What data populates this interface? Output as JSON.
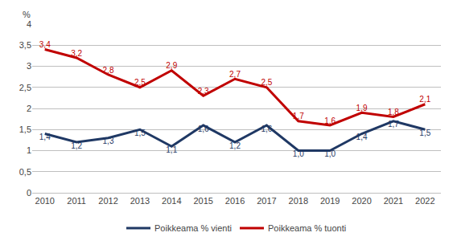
{
  "chart_data": {
    "type": "line",
    "y_label": "%",
    "x": [
      2010,
      2011,
      2012,
      2013,
      2014,
      2015,
      2016,
      2017,
      2018,
      2019,
      2020,
      2021,
      2022
    ],
    "series": [
      {
        "name": "Poikkeama % tuonti",
        "color": "#C00000",
        "values": [
          3.4,
          3.2,
          2.8,
          2.5,
          2.9,
          2.3,
          2.7,
          2.5,
          1.7,
          1.6,
          1.9,
          1.8,
          2.1
        ],
        "value_labels": [
          "3,4",
          "3,2",
          "2,8",
          "2,5",
          "2,9",
          "2,3",
          "2,7",
          "2,5",
          "1,7",
          "1,6",
          "1,9",
          "1,8",
          "2,1"
        ]
      },
      {
        "name": "Poikkeama % vienti",
        "color": "#1F3864",
        "values": [
          1.4,
          1.2,
          1.3,
          1.5,
          1.1,
          1.6,
          1.2,
          1.6,
          1.0,
          1.0,
          1.4,
          1.7,
          1.5
        ],
        "value_labels": [
          "1,4",
          "1,2",
          "1,3",
          "1,5",
          "1,1",
          "1,6",
          "1,2",
          "1,6",
          "1,0",
          "1,0",
          "1,4",
          "1,7",
          "1,5"
        ]
      }
    ],
    "xlim": [
      2009.6,
      2022.5
    ],
    "xticks": [
      2010,
      2011,
      2012,
      2013,
      2014,
      2015,
      2016,
      2017,
      2018,
      2019,
      2020,
      2021,
      2022
    ],
    "ylim": [
      0,
      4.0
    ],
    "yticks": [
      0,
      {
        "value": 0.5,
        "label": "0,5"
      },
      1,
      {
        "value": 1.5,
        "label": "1,5"
      },
      2,
      {
        "value": 2.5,
        "label": "2,5"
      },
      3,
      {
        "value": 3.5,
        "label": "3,5"
      },
      4
    ],
    "grid": "y",
    "legend": "bottom",
    "data_labels": true
  }
}
